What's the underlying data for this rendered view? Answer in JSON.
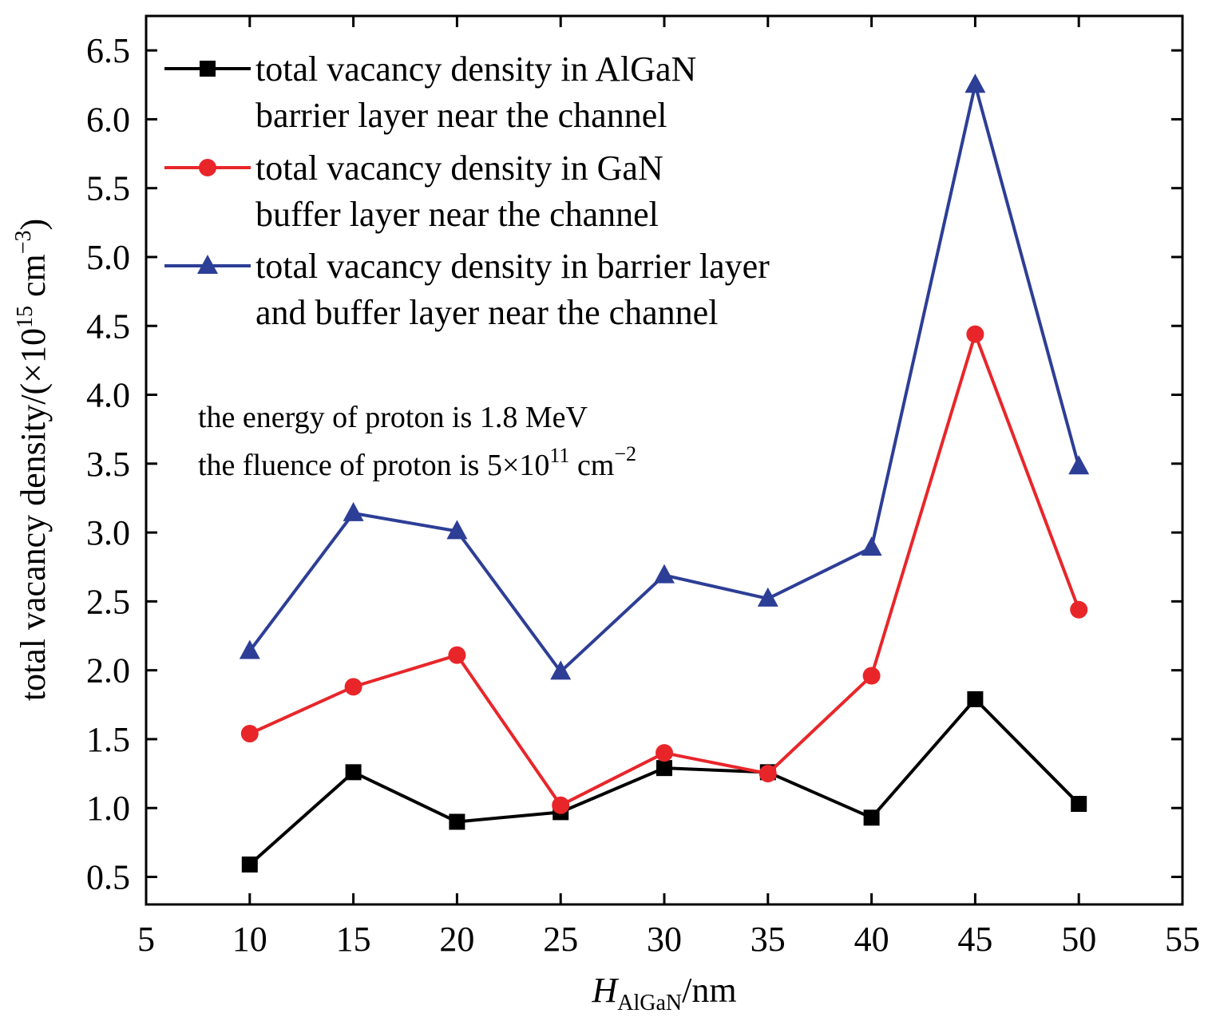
{
  "chart_data": {
    "type": "line",
    "xlim": [
      5,
      55
    ],
    "ylim": [
      0.3,
      6.75
    ],
    "x_ticks": [
      5,
      10,
      15,
      20,
      25,
      30,
      35,
      40,
      45,
      50,
      55
    ],
    "y_ticks": [
      0.5,
      1.0,
      1.5,
      2.0,
      2.5,
      3.0,
      3.5,
      4.0,
      4.5,
      5.0,
      5.5,
      6.0,
      6.5
    ],
    "x_tick_labels": [
      "5",
      "10",
      "15",
      "20",
      "25",
      "30",
      "35",
      "40",
      "45",
      "50",
      "55"
    ],
    "y_tick_labels": [
      "0.5",
      "1.0",
      "1.5",
      "2.0",
      "2.5",
      "3.0",
      "3.5",
      "4.0",
      "4.5",
      "5.0",
      "5.5",
      "6.0",
      "6.5"
    ],
    "xlabel": {
      "main": "H",
      "sub": "AlGaN",
      "rest": "/nm"
    },
    "ylabel": {
      "text": "total vacancy density/(×10",
      "sup1": "15",
      "unit": " cm",
      "sup2": "−3",
      "close": ")"
    },
    "grid": false,
    "legend_position": "top-left",
    "x": [
      10,
      15,
      20,
      25,
      30,
      35,
      40,
      45,
      50
    ],
    "series": [
      {
        "name_lines": [
          "total vacancy density in AlGaN",
          "barrier layer near the channel"
        ],
        "color": "#000000",
        "marker": "square",
        "values": [
          0.59,
          1.26,
          0.9,
          0.97,
          1.29,
          1.26,
          0.93,
          1.79,
          1.03
        ]
      },
      {
        "name_lines": [
          "total vacancy density in GaN",
          "buffer layer near the channel"
        ],
        "color": "#e8262a",
        "marker": "circle",
        "values": [
          1.54,
          1.88,
          2.11,
          1.02,
          1.4,
          1.25,
          1.96,
          4.44,
          2.44
        ]
      },
      {
        "name_lines": [
          "total vacancy density in barrier layer",
          "and buffer layer near the channel"
        ],
        "color": "#2d3e96",
        "marker": "triangle",
        "values": [
          2.14,
          3.14,
          3.01,
          1.99,
          2.69,
          2.52,
          2.89,
          6.25,
          3.48
        ]
      }
    ],
    "annotations": {
      "energy": "the energy of proton is 1.8 MeV",
      "fluence_prefix": "the fluence of proton is 5×10",
      "fluence_sup1": "11",
      "fluence_unit": " cm",
      "fluence_sup2": "−2"
    }
  }
}
